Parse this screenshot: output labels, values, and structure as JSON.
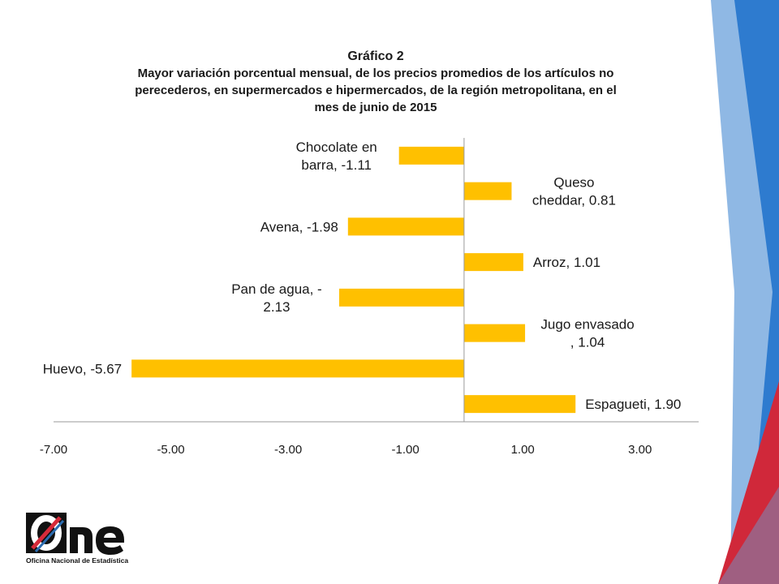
{
  "chart_data": {
    "type": "bar",
    "orientation": "horizontal",
    "title": "Gráfico 2",
    "subtitle_lines": [
      "Mayor variación porcentual mensual, de los precios promedios de los artículos no",
      "perecederos, en supermercados e hipermercados,  de la región metropolitana, en el",
      "mes de junio  de 2015"
    ],
    "bars": [
      {
        "value": -1.11,
        "label_lines": [
          "Chocolate en",
          "barra, -1.11"
        ]
      },
      {
        "value": 0.81,
        "label_lines": [
          "Queso",
          "cheddar, 0.81"
        ]
      },
      {
        "value": -1.98,
        "label_lines": [
          "Avena, -1.98"
        ]
      },
      {
        "value": 1.01,
        "label_lines": [
          "Arroz, 1.01"
        ]
      },
      {
        "value": -2.13,
        "label_lines": [
          "Pan de agua, -",
          "2.13"
        ]
      },
      {
        "value": 1.04,
        "label_lines": [
          "Jugo envasado",
          ", 1.04"
        ]
      },
      {
        "value": -5.67,
        "label_lines": [
          "Huevo, -5.67"
        ]
      },
      {
        "value": 1.9,
        "label_lines": [
          "Espagueti, 1.90"
        ]
      }
    ],
    "x_ticks": [
      -7,
      -5,
      -3,
      -1,
      1,
      3
    ],
    "x_tick_labels": [
      "-7.00",
      "-5.00",
      "-3.00",
      "-1.00",
      "1.00",
      "3.00"
    ],
    "xlim": [
      -7,
      4
    ],
    "grid": false,
    "bar_color": "#FFC000"
  },
  "logo": {
    "name": "One",
    "caption": "Oficina Nacional de Estadística",
    "colors": {
      "black": "#111111",
      "blue": "#2B6CB0",
      "red": "#D62A3A"
    }
  },
  "decor_colors": {
    "light_blue": "#8FB8E4",
    "blue": "#2E7BCF",
    "red": "#D0283A"
  }
}
